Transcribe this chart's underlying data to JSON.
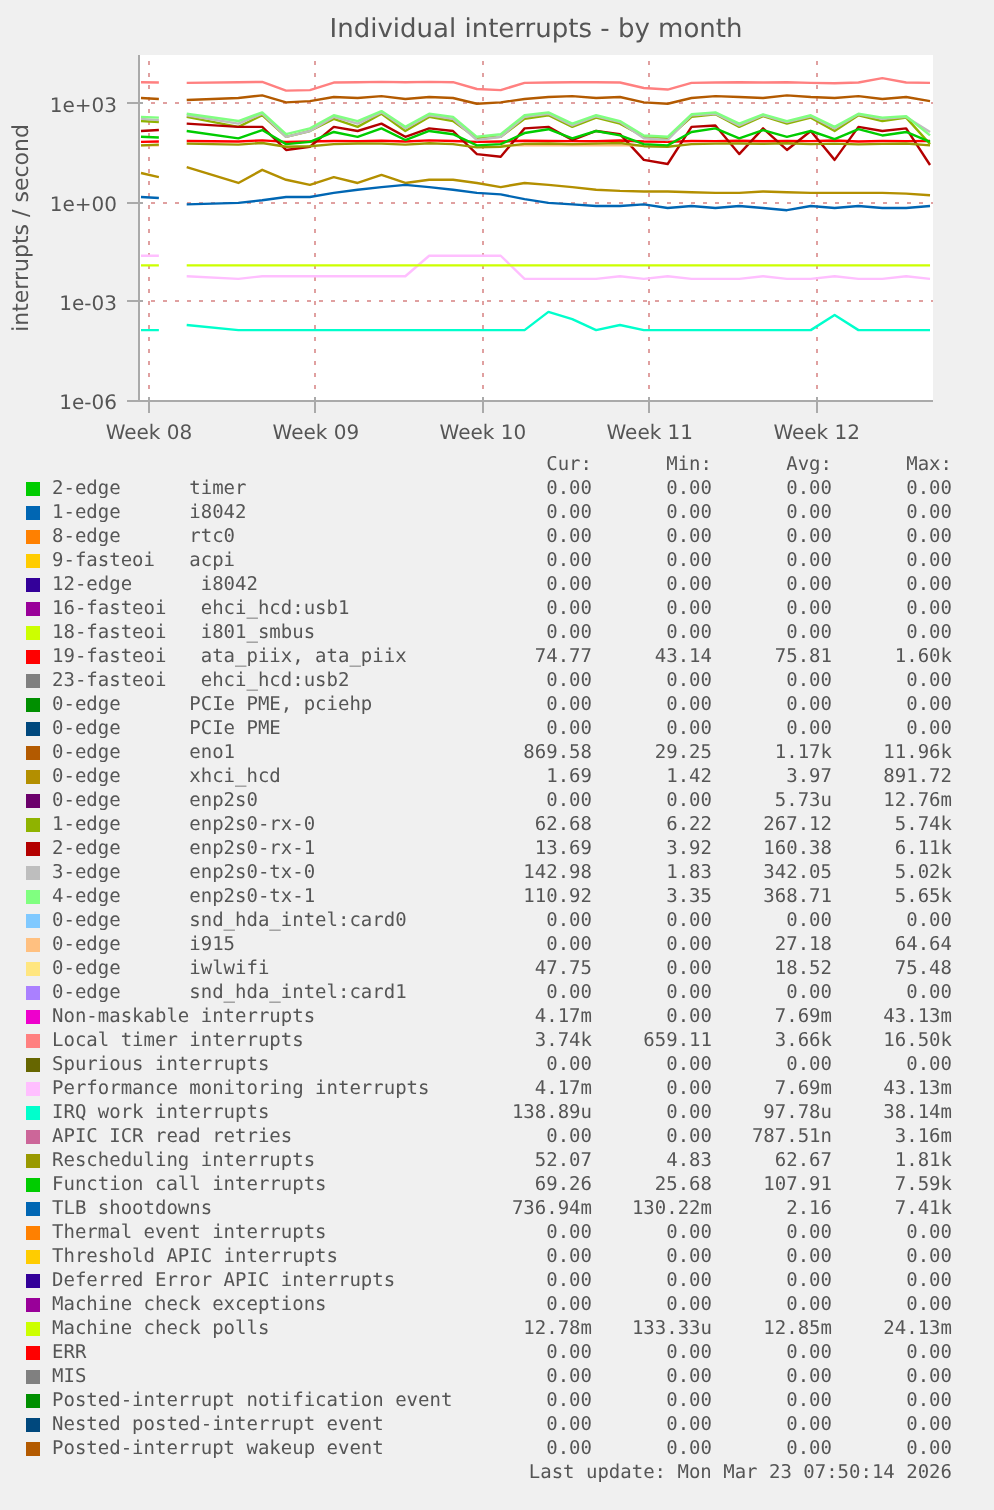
{
  "chart_data": {
    "type": "line",
    "title": "Individual interrupts - by month",
    "ylabel": "interrupts / second",
    "log": "y",
    "grid": true,
    "legend": "bottom",
    "line_style": "solid",
    "xlim": [
      "2026-02-15T14:00",
      "2026-03-20T21:00"
    ],
    "xticks": [
      {
        "value": "2026-02-16",
        "label": "Week 08"
      },
      {
        "value": "2026-02-23",
        "label": "Week 09"
      },
      {
        "value": "2026-03-02",
        "label": "Week 10"
      },
      {
        "value": "2026-03-09",
        "label": "Week 11"
      },
      {
        "value": "2026-03-16",
        "label": "Week 12"
      }
    ],
    "ylim": [
      1e-06,
      30000
    ],
    "yticks": [
      {
        "value": 1e-06,
        "label": "1e-06"
      },
      {
        "value": 0.001,
        "label": "1e-03"
      },
      {
        "value": 1,
        "label": "1e+00"
      },
      {
        "value": 1000,
        "label": "1e+03"
      }
    ],
    "x": [
      "2026-02-15T16:00",
      "2026-02-16T10:00",
      "2026-02-17T00:00",
      "2026-02-17T14:00",
      "2026-02-19T18:00",
      "2026-02-20T18:00",
      "2026-02-21T18:00",
      "2026-02-22T18:00",
      "2026-02-23T18:00",
      "2026-02-24T18:00",
      "2026-02-25T18:00",
      "2026-02-26T18:00",
      "2026-02-27T18:00",
      "2026-02-28T18:00",
      "2026-03-01T18:00",
      "2026-03-02T18:00",
      "2026-03-03T18:00",
      "2026-03-04T18:00",
      "2026-03-05T18:00",
      "2026-03-06T18:00",
      "2026-03-07T18:00",
      "2026-03-08T18:00",
      "2026-03-09T18:00",
      "2026-03-10T18:00",
      "2026-03-11T18:00",
      "2026-03-12T18:00",
      "2026-03-13T18:00",
      "2026-03-14T18:00",
      "2026-03-15T18:00",
      "2026-03-16T18:00",
      "2026-03-17T18:00",
      "2026-03-18T18:00",
      "2026-03-19T18:00",
      "2026-03-20T18:00"
    ],
    "series": [
      {
        "name": "2-edge      timer",
        "color": "#00cc00",
        "values": [
          null,
          null,
          null,
          null,
          null,
          null,
          null,
          null,
          null,
          null,
          null,
          null,
          null,
          null,
          null,
          null,
          null,
          null,
          null,
          null,
          null,
          null,
          null,
          null,
          null,
          null,
          null,
          null,
          null,
          null,
          null,
          null,
          null,
          null
        ]
      },
      {
        "name": "1-edge      i8042",
        "color": "#0066b3",
        "values": [
          null,
          null,
          null,
          null,
          null,
          null,
          null,
          null,
          null,
          null,
          null,
          null,
          null,
          null,
          null,
          null,
          null,
          null,
          null,
          null,
          null,
          null,
          null,
          null,
          null,
          null,
          null,
          null,
          null,
          null,
          null,
          null,
          null,
          null
        ]
      },
      {
        "name": "8-edge      rtc0",
        "color": "#ff8000",
        "values": [
          null,
          null,
          null,
          null,
          null,
          null,
          null,
          null,
          null,
          null,
          null,
          null,
          null,
          null,
          null,
          null,
          null,
          null,
          null,
          null,
          null,
          null,
          null,
          null,
          null,
          null,
          null,
          null,
          null,
          null,
          null,
          null,
          null,
          null
        ]
      },
      {
        "name": "9-fasteoi   acpi",
        "color": "#ffcc00",
        "values": [
          null,
          null,
          null,
          null,
          null,
          null,
          null,
          null,
          null,
          null,
          null,
          null,
          null,
          null,
          null,
          null,
          null,
          null,
          null,
          null,
          null,
          null,
          null,
          null,
          null,
          null,
          null,
          null,
          null,
          null,
          null,
          null,
          null,
          null
        ]
      },
      {
        "name": "12-edge      i8042",
        "color": "#330099",
        "values": [
          null,
          null,
          null,
          null,
          null,
          null,
          null,
          null,
          null,
          null,
          null,
          null,
          null,
          null,
          null,
          null,
          null,
          null,
          null,
          null,
          null,
          null,
          null,
          null,
          null,
          null,
          null,
          null,
          null,
          null,
          null,
          null,
          null,
          null
        ]
      },
      {
        "name": "16-fasteoi   ehci_hcd:usb1",
        "color": "#990099",
        "values": [
          null,
          null,
          null,
          null,
          null,
          null,
          null,
          null,
          null,
          null,
          null,
          null,
          null,
          null,
          null,
          null,
          null,
          null,
          null,
          null,
          null,
          null,
          null,
          null,
          null,
          null,
          null,
          null,
          null,
          null,
          null,
          null,
          null,
          null
        ]
      },
      {
        "name": "18-fasteoi   i801_smbus",
        "color": "#ccff00",
        "values": [
          null,
          null,
          null,
          null,
          null,
          null,
          null,
          null,
          null,
          null,
          null,
          null,
          null,
          null,
          null,
          null,
          null,
          null,
          null,
          null,
          null,
          null,
          null,
          null,
          null,
          null,
          null,
          null,
          null,
          null,
          null,
          null,
          null,
          null
        ]
      },
      {
        "name": "19-fasteoi   ata_piix, ata_piix",
        "color": "#ff0000",
        "values": [
          70,
          72,
          null,
          75,
          72,
          78,
          70,
          72,
          75,
          74,
          76,
          72,
          78,
          75,
          70,
          72,
          76,
          75,
          74,
          73,
          77,
          72,
          70,
          75,
          74,
          76,
          73,
          75,
          74,
          77,
          72,
          75,
          74,
          75
        ]
      },
      {
        "name": "23-fasteoi   ehci_hcd:usb2",
        "color": "#808080",
        "values": [
          null,
          null,
          null,
          null,
          null,
          null,
          null,
          null,
          null,
          null,
          null,
          null,
          null,
          null,
          null,
          null,
          null,
          null,
          null,
          null,
          null,
          null,
          null,
          null,
          null,
          null,
          null,
          null,
          null,
          null,
          null,
          null,
          null,
          null
        ]
      },
      {
        "name": "0-edge      PCIe PME, pciehp",
        "color": "#008f00",
        "values": [
          null,
          null,
          null,
          null,
          null,
          null,
          null,
          null,
          null,
          null,
          null,
          null,
          null,
          null,
          null,
          null,
          null,
          null,
          null,
          null,
          null,
          null,
          null,
          null,
          null,
          null,
          null,
          null,
          null,
          null,
          null,
          null,
          null,
          null
        ]
      },
      {
        "name": "0-edge      PCIe PME",
        "color": "#00487d",
        "values": [
          null,
          null,
          null,
          null,
          null,
          null,
          null,
          null,
          null,
          null,
          null,
          null,
          null,
          null,
          null,
          null,
          null,
          null,
          null,
          null,
          null,
          null,
          null,
          null,
          null,
          null,
          null,
          null,
          null,
          null,
          null,
          null,
          null,
          null
        ]
      },
      {
        "name": "0-edge      eno1",
        "color": "#b35a00",
        "values": [
          1500,
          1400,
          null,
          1300,
          1500,
          1800,
          1100,
          1200,
          1600,
          1500,
          1700,
          1400,
          1600,
          1500,
          1000,
          1100,
          1400,
          1600,
          1700,
          1500,
          1600,
          1100,
          1000,
          1500,
          1700,
          1600,
          1500,
          1800,
          1600,
          1500,
          1700,
          1400,
          1600,
          1200
        ]
      },
      {
        "name": "0-edge      xhci_hcd",
        "color": "#b38f00",
        "values": [
          8,
          6,
          null,
          12,
          4,
          10,
          5,
          3.5,
          6,
          4,
          7,
          4,
          5,
          5,
          4,
          3,
          4,
          3.5,
          3,
          2.5,
          2.3,
          2.2,
          2.2,
          2.1,
          2,
          2,
          2.2,
          2.1,
          2,
          2,
          2,
          2,
          1.9,
          1.7
        ]
      },
      {
        "name": "0-edge      enp2s0",
        "color": "#6b006b",
        "values": [
          null,
          null,
          null,
          null,
          null,
          null,
          null,
          null,
          null,
          null,
          null,
          null,
          null,
          null,
          null,
          null,
          null,
          null,
          null,
          null,
          null,
          null,
          null,
          null,
          null,
          null,
          null,
          null,
          null,
          null,
          null,
          null,
          null,
          null
        ]
      },
      {
        "name": "1-edge      enp2s0-rx-0",
        "color": "#8fb300",
        "values": [
          300,
          280,
          null,
          400,
          200,
          450,
          100,
          150,
          350,
          200,
          500,
          150,
          400,
          300,
          90,
          100,
          350,
          450,
          200,
          380,
          250,
          100,
          90,
          400,
          480,
          200,
          420,
          250,
          380,
          150,
          450,
          300,
          380,
          60
        ]
      },
      {
        "name": "2-edge      enp2s0-rx-1",
        "color": "#b30000",
        "values": [
          150,
          160,
          null,
          250,
          200,
          200,
          40,
          50,
          200,
          150,
          250,
          100,
          180,
          150,
          30,
          25,
          180,
          200,
          80,
          150,
          120,
          20,
          15,
          200,
          220,
          30,
          180,
          40,
          150,
          20,
          200,
          150,
          180,
          14
        ]
      },
      {
        "name": "3-edge      enp2s0-tx-0",
        "color": "#bebebe",
        "values": [
          350,
          320,
          null,
          450,
          250,
          500,
          100,
          150,
          400,
          250,
          550,
          180,
          450,
          350,
          80,
          100,
          400,
          500,
          220,
          420,
          280,
          90,
          80,
          450,
          500,
          220,
          450,
          280,
          420,
          180,
          480,
          350,
          400,
          140
        ]
      },
      {
        "name": "4-edge      enp2s0-tx-1",
        "color": "#80ff80",
        "values": [
          400,
          380,
          null,
          500,
          300,
          550,
          120,
          180,
          450,
          300,
          600,
          200,
          500,
          400,
          100,
          120,
          450,
          550,
          250,
          450,
          300,
          110,
          100,
          480,
          550,
          250,
          480,
          300,
          450,
          200,
          500,
          380,
          420,
          110
        ]
      },
      {
        "name": "0-edge      snd_hda_intel:card0",
        "color": "#80c9ff",
        "values": [
          null,
          null,
          null,
          null,
          null,
          null,
          null,
          null,
          null,
          null,
          null,
          null,
          null,
          null,
          null,
          null,
          null,
          null,
          null,
          null,
          null,
          null,
          null,
          null,
          null,
          null,
          null,
          null,
          null,
          null,
          null,
          null,
          null,
          null
        ]
      },
      {
        "name": "0-edge      i915",
        "color": "#ffc080",
        "values": [
          55,
          55,
          null,
          null,
          null,
          null,
          null,
          null,
          null,
          null,
          null,
          null,
          null,
          null,
          null,
          55,
          55,
          55,
          55,
          55,
          55,
          55,
          null,
          null,
          null,
          null,
          null,
          null,
          null,
          null,
          null,
          null,
          null,
          null
        ]
      },
      {
        "name": "0-edge      iwlwifi",
        "color": "#ffe680",
        "values": [
          null,
          null,
          null,
          null,
          null,
          null,
          null,
          null,
          null,
          null,
          null,
          null,
          null,
          null,
          null,
          null,
          null,
          null,
          null,
          null,
          null,
          null,
          null,
          null,
          null,
          null,
          null,
          null,
          null,
          null,
          null,
          null,
          null,
          null
        ]
      },
      {
        "name": "0-edge      snd_hda_intel:card1",
        "color": "#aa80ff",
        "values": [
          null,
          null,
          null,
          null,
          null,
          null,
          null,
          null,
          null,
          null,
          null,
          null,
          null,
          null,
          null,
          null,
          null,
          null,
          null,
          null,
          null,
          null,
          null,
          null,
          null,
          null,
          null,
          null,
          null,
          null,
          null,
          null,
          null,
          null
        ]
      },
      {
        "name": "Non-maskable interrupts",
        "color": "#ee00cc",
        "values": [
          null,
          null,
          null,
          null,
          null,
          null,
          null,
          null,
          null,
          null,
          null,
          null,
          null,
          null,
          null,
          null,
          null,
          null,
          null,
          null,
          null,
          null,
          null,
          null,
          null,
          null,
          null,
          null,
          null,
          null,
          null,
          null,
          null,
          null
        ]
      },
      {
        "name": "Local timer interrupts",
        "color": "#ff8080",
        "values": [
          4500,
          4400,
          null,
          4300,
          4500,
          4600,
          2500,
          2600,
          4400,
          4500,
          4600,
          4500,
          4600,
          4500,
          2800,
          2600,
          4300,
          4400,
          4500,
          4500,
          4400,
          3000,
          2700,
          4300,
          4400,
          4500,
          4400,
          4500,
          4300,
          4200,
          4400,
          6000,
          4400,
          4300
        ]
      },
      {
        "name": "Spurious interrupts",
        "color": "#666600",
        "values": [
          null,
          null,
          null,
          null,
          null,
          null,
          null,
          null,
          null,
          null,
          null,
          null,
          null,
          null,
          null,
          null,
          null,
          null,
          null,
          null,
          null,
          null,
          null,
          null,
          null,
          null,
          null,
          null,
          null,
          null,
          null,
          null,
          null,
          null
        ]
      },
      {
        "name": "Performance monitoring interrupts",
        "color": "#ffbfff",
        "values": [
          0.025,
          0.025,
          null,
          0.006,
          0.005,
          0.006,
          0.006,
          0.006,
          0.006,
          0.006,
          0.006,
          0.006,
          0.025,
          0.025,
          0.025,
          0.025,
          0.005,
          0.005,
          0.005,
          0.005,
          0.006,
          0.005,
          0.006,
          0.005,
          0.005,
          0.005,
          0.006,
          0.005,
          0.005,
          0.006,
          0.005,
          0.005,
          0.006,
          0.005
        ]
      },
      {
        "name": "IRQ work interrupts",
        "color": "#00ffcc",
        "values": [
          0.00014,
          0.00014,
          null,
          0.0002,
          0.00014,
          0.00014,
          0.00014,
          0.00014,
          0.00014,
          0.00014,
          0.00014,
          0.00014,
          0.00014,
          0.00014,
          0.00014,
          0.00014,
          0.00014,
          0.0005,
          0.0003,
          0.00014,
          0.0002,
          0.00014,
          0.00014,
          0.00014,
          0.00014,
          0.00014,
          0.00014,
          0.00014,
          0.00014,
          0.0004,
          0.00014,
          0.00014,
          0.00014,
          0.00014
        ]
      },
      {
        "name": "APIC ICR read retries",
        "color": "#cc6699",
        "values": [
          null,
          null,
          null,
          null,
          null,
          null,
          null,
          null,
          null,
          null,
          null,
          null,
          null,
          null,
          null,
          null,
          null,
          null,
          null,
          null,
          null,
          null,
          null,
          null,
          null,
          null,
          null,
          null,
          null,
          null,
          null,
          null,
          null,
          null
        ]
      },
      {
        "name": "Rescheduling interrupts",
        "color": "#999900",
        "values": [
          55,
          58,
          null,
          62,
          58,
          65,
          50,
          52,
          60,
          63,
          62,
          58,
          64,
          60,
          48,
          50,
          61,
          63,
          60,
          62,
          65,
          52,
          50,
          60,
          62,
          63,
          61,
          64,
          60,
          62,
          59,
          61,
          63,
          55
        ]
      },
      {
        "name": "Function call interrupts",
        "color": "#00cc00",
        "values": [
          100,
          95,
          null,
          150,
          90,
          160,
          60,
          70,
          140,
          100,
          180,
          80,
          150,
          120,
          55,
          60,
          130,
          170,
          90,
          150,
          110,
          60,
          55,
          140,
          180,
          90,
          160,
          100,
          150,
          85,
          170,
          110,
          140,
          70
        ]
      },
      {
        "name": "TLB shootdowns",
        "color": "#0066b3",
        "values": [
          1.5,
          1.4,
          null,
          0.9,
          1,
          1.2,
          1.5,
          1.5,
          2,
          2.5,
          3,
          3.5,
          3,
          2.5,
          2,
          1.8,
          1.3,
          1,
          0.9,
          0.8,
          0.8,
          0.9,
          0.7,
          0.8,
          0.7,
          0.8,
          0.7,
          0.6,
          0.8,
          0.7,
          0.8,
          0.7,
          0.7,
          0.8
        ]
      },
      {
        "name": "Thermal event interrupts",
        "color": "#ff8000",
        "values": [
          null,
          null,
          null,
          null,
          null,
          null,
          null,
          null,
          null,
          null,
          null,
          null,
          null,
          null,
          null,
          null,
          null,
          null,
          null,
          null,
          null,
          null,
          null,
          null,
          null,
          null,
          null,
          null,
          null,
          null,
          null,
          null,
          null,
          null
        ]
      },
      {
        "name": "Threshold APIC interrupts",
        "color": "#ffcc00",
        "values": [
          null,
          null,
          null,
          null,
          null,
          null,
          null,
          null,
          null,
          null,
          null,
          null,
          null,
          null,
          null,
          null,
          null,
          null,
          null,
          null,
          null,
          null,
          null,
          null,
          null,
          null,
          null,
          null,
          null,
          null,
          null,
          null,
          null,
          null
        ]
      },
      {
        "name": "Deferred Error APIC interrupts",
        "color": "#330099",
        "values": [
          null,
          null,
          null,
          null,
          null,
          null,
          null,
          null,
          null,
          null,
          null,
          null,
          null,
          null,
          null,
          null,
          null,
          null,
          null,
          null,
          null,
          null,
          null,
          null,
          null,
          null,
          null,
          null,
          null,
          null,
          null,
          null,
          null,
          null
        ]
      },
      {
        "name": "Machine check exceptions",
        "color": "#990099",
        "values": [
          null,
          null,
          null,
          null,
          null,
          null,
          null,
          null,
          null,
          null,
          null,
          null,
          null,
          null,
          null,
          null,
          null,
          null,
          null,
          null,
          null,
          null,
          null,
          null,
          null,
          null,
          null,
          null,
          null,
          null,
          null,
          null,
          null,
          null
        ]
      },
      {
        "name": "Machine check polls",
        "color": "#ccff00",
        "values": [
          0.0128,
          0.0128,
          null,
          0.0128,
          0.0128,
          0.0128,
          0.0128,
          0.0128,
          0.0128,
          0.0128,
          0.0128,
          0.0128,
          0.0128,
          0.0128,
          0.0128,
          0.0128,
          0.0128,
          0.0128,
          0.0128,
          0.0128,
          0.0128,
          0.0128,
          0.0128,
          0.0128,
          0.0128,
          0.0128,
          0.0128,
          0.0128,
          0.0128,
          0.0128,
          0.0128,
          0.0128,
          0.0128,
          0.0128
        ]
      },
      {
        "name": "ERR",
        "color": "#ff0000",
        "values": [
          null,
          null,
          null,
          null,
          null,
          null,
          null,
          null,
          null,
          null,
          null,
          null,
          null,
          null,
          null,
          null,
          null,
          null,
          null,
          null,
          null,
          null,
          null,
          null,
          null,
          null,
          null,
          null,
          null,
          null,
          null,
          null,
          null,
          null
        ]
      },
      {
        "name": "MIS",
        "color": "#808080",
        "values": [
          null,
          null,
          null,
          null,
          null,
          null,
          null,
          null,
          null,
          null,
          null,
          null,
          null,
          null,
          null,
          null,
          null,
          null,
          null,
          null,
          null,
          null,
          null,
          null,
          null,
          null,
          null,
          null,
          null,
          null,
          null,
          null,
          null,
          null
        ]
      },
      {
        "name": "Posted-interrupt notification event",
        "color": "#008f00",
        "values": [
          null,
          null,
          null,
          null,
          null,
          null,
          null,
          null,
          null,
          null,
          null,
          null,
          null,
          null,
          null,
          null,
          null,
          null,
          null,
          null,
          null,
          null,
          null,
          null,
          null,
          null,
          null,
          null,
          null,
          null,
          null,
          null,
          null,
          null
        ]
      },
      {
        "name": "Nested posted-interrupt event",
        "color": "#00487d",
        "values": [
          null,
          null,
          null,
          null,
          null,
          null,
          null,
          null,
          null,
          null,
          null,
          null,
          null,
          null,
          null,
          null,
          null,
          null,
          null,
          null,
          null,
          null,
          null,
          null,
          null,
          null,
          null,
          null,
          null,
          null,
          null,
          null,
          null,
          null
        ]
      },
      {
        "name": "Posted-interrupt wakeup event",
        "color": "#b35a00",
        "values": [
          null,
          null,
          null,
          null,
          null,
          null,
          null,
          null,
          null,
          null,
          null,
          null,
          null,
          null,
          null,
          null,
          null,
          null,
          null,
          null,
          null,
          null,
          null,
          null,
          null,
          null,
          null,
          null,
          null,
          null,
          null,
          null,
          null,
          null
        ]
      }
    ],
    "annotations": [
      "Cur:",
      "Min:",
      "Avg:",
      "Max:",
      "0.00",
      "0.00",
      "0.00",
      "0.00",
      "0.00",
      "0.00",
      "0.00",
      "0.00",
      "0.00",
      "0.00",
      "0.00",
      "0.00",
      "0.00",
      "0.00",
      "0.00",
      "0.00",
      "0.00",
      "0.00",
      "0.00",
      "0.00",
      "0.00",
      "0.00",
      "0.00",
      "0.00",
      "0.00",
      "0.00",
      "0.00",
      "0.00",
      "74.77",
      "43.14",
      "75.81",
      "1.60k",
      "0.00",
      "0.00",
      "0.00",
      "0.00",
      "0.00",
      "0.00",
      "0.00",
      "0.00",
      "0.00",
      "0.00",
      "0.00",
      "0.00",
      "869.58",
      "29.25",
      "1.17k",
      "11.96k",
      "1.69",
      "1.42",
      "3.97",
      "891.72",
      "0.00",
      "0.00",
      "5.73u",
      "12.76m",
      "62.68",
      "6.22",
      "267.12",
      "5.74k",
      "13.69",
      "3.92",
      "160.38",
      "6.11k",
      "142.98",
      "1.83",
      "342.05",
      "5.02k",
      "110.92",
      "3.35",
      "368.71",
      "5.65k",
      "0.00",
      "0.00",
      "0.00",
      "0.00",
      "0.00",
      "0.00",
      "27.18",
      "64.64",
      "47.75",
      "0.00",
      "18.52",
      "75.48",
      "0.00",
      "0.00",
      "0.00",
      "0.00",
      "4.17m",
      "0.00",
      "7.69m",
      "43.13m",
      "3.74k",
      "659.11",
      "3.66k",
      "16.50k",
      "0.00",
      "0.00",
      "0.00",
      "0.00",
      "4.17m",
      "0.00",
      "7.69m",
      "43.13m",
      "138.89u",
      "0.00",
      "97.78u",
      "38.14m",
      "0.00",
      "0.00",
      "787.51n",
      "3.16m",
      "52.07",
      "4.83",
      "62.67",
      "1.81k",
      "69.26",
      "25.68",
      "107.91",
      "7.59k",
      "736.94m",
      "130.22m",
      "2.16",
      "7.41k",
      "0.00",
      "0.00",
      "0.00",
      "0.00",
      "0.00",
      "0.00",
      "0.00",
      "0.00",
      "0.00",
      "0.00",
      "0.00",
      "0.00",
      "0.00",
      "0.00",
      "0.00",
      "0.00",
      "12.78m",
      "133.33u",
      "12.85m",
      "24.13m",
      "0.00",
      "0.00",
      "0.00",
      "0.00",
      "0.00",
      "0.00",
      "0.00",
      "0.00",
      "0.00",
      "0.00",
      "0.00",
      "0.00",
      "0.00",
      "0.00",
      "0.00",
      "0.00",
      "0.00",
      "0.00",
      "0.00",
      "0.00",
      "Last update: Mon Mar 23 07:50:14 2026"
    ]
  }
}
